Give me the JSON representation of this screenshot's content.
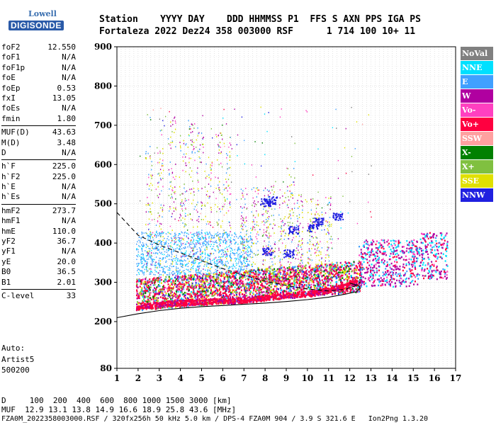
{
  "logo": {
    "line1": "Lowell",
    "line2": "DIGISONDE"
  },
  "header": {
    "labels": "Station    YYYY DAY    DDD HHMMSS P1  FFS S AXN PPS IGA PS",
    "values": "Fortaleza 2022 Dez24 358 003000 RSF      1 714 100 10+ 11"
  },
  "params": [
    [
      {
        "k": "foF2",
        "v": "12.550"
      },
      {
        "k": "foF1",
        "v": "N/A"
      },
      {
        "k": "foF1p",
        "v": "N/A"
      },
      {
        "k": "foE",
        "v": "N/A"
      },
      {
        "k": "foEp",
        "v": "0.53"
      },
      {
        "k": "fxI",
        "v": "13.05"
      },
      {
        "k": "foEs",
        "v": "N/A"
      },
      {
        "k": "fmin",
        "v": "1.80"
      }
    ],
    [
      {
        "k": "MUF(D)",
        "v": "43.63"
      },
      {
        "k": "M(D)",
        "v": "3.48"
      },
      {
        "k": "D",
        "v": "N/A"
      }
    ],
    [
      {
        "k": "h`F",
        "v": "225.0"
      },
      {
        "k": "h`F2",
        "v": "225.0"
      },
      {
        "k": "h`E",
        "v": "N/A"
      },
      {
        "k": "h`Es",
        "v": "N/A"
      }
    ],
    [
      {
        "k": "hmF2",
        "v": "273.7"
      },
      {
        "k": "hmF1",
        "v": "N/A"
      },
      {
        "k": "hmE",
        "v": "110.0"
      },
      {
        "k": "yF2",
        "v": "36.7"
      },
      {
        "k": "yF1",
        "v": "N/A"
      },
      {
        "k": "yE",
        "v": "20.0"
      },
      {
        "k": "B0",
        "v": "36.5"
      },
      {
        "k": "B1",
        "v": "2.01"
      }
    ],
    [
      {
        "k": "C-level",
        "v": "33"
      }
    ]
  ],
  "auto": {
    "line1": "Auto:",
    "line2": "Artist5",
    "line3": "500200"
  },
  "legend": [
    {
      "label": "NoVal",
      "bg": "#808080",
      "fg": "#ffffff"
    },
    {
      "label": "NNE",
      "bg": "#00e0ff",
      "fg": "#ffffff"
    },
    {
      "label": "E",
      "bg": "#40a0ff",
      "fg": "#ffffff"
    },
    {
      "label": "W",
      "bg": "#b000a0",
      "fg": "#ffffff"
    },
    {
      "label": "Vo-",
      "bg": "#ff40c0",
      "fg": "#ffffff"
    },
    {
      "label": "Vo+",
      "bg": "#ff0040",
      "fg": "#ffffff"
    },
    {
      "label": "SSW",
      "bg": "#ffa0a0",
      "fg": "#ffffff"
    },
    {
      "label": "X-",
      "bg": "#008000",
      "fg": "#ffffff"
    },
    {
      "label": "X+",
      "bg": "#80c040",
      "fg": "#ffffff"
    },
    {
      "label": "SSE",
      "bg": "#e0e000",
      "fg": "#ffffff"
    },
    {
      "label": "NNW",
      "bg": "#2020e0",
      "fg": "#ffffff"
    }
  ],
  "footer": {
    "d_row": "D     100  200  400  600  800 1000 1500 3000 [km]",
    "muf_row": "MUF  12.9 13.1 13.8 14.9 16.6 18.9 25.8 43.6 [MHz]",
    "file_row": "FZA0M_2022358003000.RSF / 320fx256h 50 kHz 5.0 km / DPS-4 FZA0M 904 / 3.9 S 321.6 E   Ion2Png 1.3.20"
  },
  "chart_data": {
    "type": "scatter",
    "xlim": [
      1,
      17
    ],
    "ylim": [
      80,
      900
    ],
    "x_ticks": [
      "1",
      "2",
      "3",
      "4",
      "5",
      "6",
      "7",
      "8",
      "9",
      "10",
      "11",
      "12",
      "13",
      "14",
      "15",
      "16",
      "17"
    ],
    "y_ticks": [
      "900",
      "800",
      "700",
      "600",
      "500",
      "400",
      "300",
      "200",
      "80"
    ],
    "y_tick_values": [
      900,
      800,
      700,
      600,
      500,
      400,
      300,
      200,
      80
    ],
    "grid": true,
    "ordinary_trace": {
      "x": [
        1.9,
        2.5,
        3,
        4,
        5,
        6,
        7,
        8,
        9,
        10,
        10.5,
        11,
        11.5,
        12,
        12.3
      ],
      "y": [
        240,
        242,
        246,
        250,
        252,
        254,
        256,
        262,
        268,
        272,
        276,
        282,
        288,
        296,
        305
      ]
    },
    "profile_solid": {
      "x": [
        1,
        2,
        3,
        4,
        5,
        6,
        7,
        8,
        9,
        10,
        11,
        11.8,
        12.3,
        12.5,
        12.4,
        12.0
      ],
      "y": [
        210,
        220,
        228,
        234,
        238,
        241,
        244,
        247,
        251,
        256,
        262,
        270,
        276,
        285,
        292,
        298
      ]
    },
    "profile_dashed": {
      "x": [
        1,
        2,
        3,
        4,
        5,
        6,
        7,
        8,
        9,
        10,
        11,
        11.8,
        12.3,
        12.5
      ],
      "y": [
        478,
        420,
        395,
        375,
        355,
        335,
        318,
        303,
        292,
        283,
        278,
        282,
        292,
        302
      ]
    }
  }
}
